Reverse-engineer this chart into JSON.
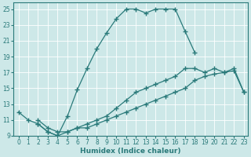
{
  "xlabel": "Humidex (Indice chaleur)",
  "bg_color": "#cde8e8",
  "grid_color": "#ffffff",
  "line_color": "#2a7a7a",
  "xlim": [
    -0.5,
    23.4
  ],
  "ylim": [
    9,
    25.8
  ],
  "xticks": [
    0,
    1,
    2,
    3,
    4,
    5,
    6,
    7,
    8,
    9,
    10,
    11,
    12,
    13,
    14,
    15,
    16,
    17,
    18,
    19,
    20,
    21,
    22,
    23
  ],
  "yticks": [
    9,
    11,
    13,
    15,
    17,
    19,
    21,
    23,
    25
  ],
  "line1_x": [
    0,
    1,
    2,
    3,
    4,
    5,
    6,
    7,
    8,
    9,
    10,
    11,
    12,
    13,
    14,
    15,
    16,
    17,
    18
  ],
  "line1_y": [
    12.0,
    11.0,
    10.5,
    9.5,
    9.0,
    11.5,
    14.8,
    17.5,
    20.0,
    22.0,
    23.8,
    25.0,
    25.0,
    24.5,
    25.0,
    25.0,
    25.0,
    22.2,
    19.5
  ],
  "line2_x": [
    2,
    3,
    4,
    5,
    6,
    7,
    8,
    9,
    10,
    11,
    12,
    13,
    14,
    15,
    16,
    17,
    18,
    19,
    20,
    21,
    22,
    23
  ],
  "line2_y": [
    11.0,
    10.0,
    9.5,
    9.5,
    10.0,
    10.5,
    11.0,
    11.5,
    12.5,
    13.5,
    14.5,
    15.0,
    15.5,
    16.0,
    16.5,
    17.5,
    17.5,
    17.0,
    17.5,
    17.0,
    17.5,
    14.5
  ],
  "line3_x": [
    2,
    3,
    4,
    5,
    6,
    7,
    8,
    9,
    10,
    11,
    12,
    13,
    14,
    15,
    16,
    17,
    18,
    19,
    20,
    21,
    22,
    23
  ],
  "line3_y": [
    10.5,
    9.5,
    9.0,
    9.5,
    10.0,
    10.0,
    10.5,
    11.0,
    11.5,
    12.0,
    12.5,
    13.0,
    13.5,
    14.0,
    14.5,
    15.0,
    16.0,
    16.5,
    16.8,
    17.0,
    17.2,
    14.5
  ]
}
